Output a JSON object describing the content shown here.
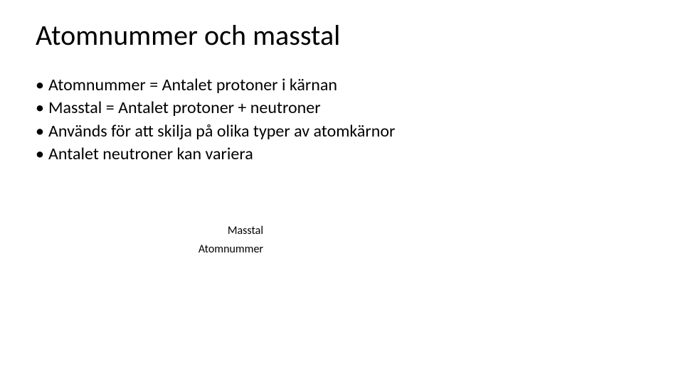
{
  "slide": {
    "background_color": "#ffffff",
    "text_color": "#000000",
    "font_family": "Calibri"
  },
  "title": {
    "text": "Atomnummer och masstal",
    "fontsize": 40,
    "fontweight": 400
  },
  "bullets": {
    "fontsize": 24,
    "marker": "•",
    "items": [
      "Atomnummer = Antalet protoner i kärnan",
      "Masstal = Antalet protoner + neutroner",
      "Används för att skilja på olika typer av atomkärnor",
      "Antalet neutroner kan variera"
    ]
  },
  "labels": {
    "fontsize": 16,
    "masstal": "Masstal",
    "atomnummer": "Atomnummer"
  }
}
